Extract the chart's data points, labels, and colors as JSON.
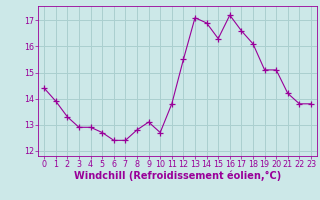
{
  "x": [
    0,
    1,
    2,
    3,
    4,
    5,
    6,
    7,
    8,
    9,
    10,
    11,
    12,
    13,
    14,
    15,
    16,
    17,
    18,
    19,
    20,
    21,
    22,
    23
  ],
  "y": [
    14.4,
    13.9,
    13.3,
    12.9,
    12.9,
    12.7,
    12.4,
    12.4,
    12.8,
    13.1,
    12.7,
    13.8,
    15.5,
    17.1,
    16.9,
    16.3,
    17.2,
    16.6,
    16.1,
    15.1,
    15.1,
    14.2,
    13.8,
    13.8
  ],
  "line_color": "#990099",
  "marker": "D",
  "marker_size": 2.2,
  "bg_color": "#cce8e8",
  "grid_color": "#aacfcf",
  "xlabel": "Windchill (Refroidissement éolien,°C)",
  "ylim": [
    11.8,
    17.55
  ],
  "xlim": [
    -0.5,
    23.5
  ],
  "yticks": [
    12,
    13,
    14,
    15,
    16,
    17
  ],
  "xticks": [
    0,
    1,
    2,
    3,
    4,
    5,
    6,
    7,
    8,
    9,
    10,
    11,
    12,
    13,
    14,
    15,
    16,
    17,
    18,
    19,
    20,
    21,
    22,
    23
  ],
  "tick_color": "#990099",
  "label_color": "#990099",
  "tick_fontsize": 5.8,
  "xlabel_fontsize": 7.0
}
